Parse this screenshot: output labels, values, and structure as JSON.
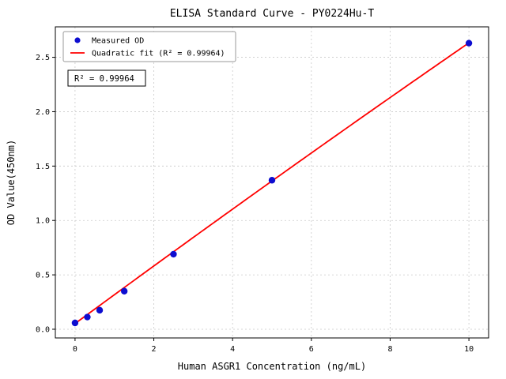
{
  "chart_data": {
    "type": "scatter",
    "title": "ELISA Standard Curve - PY0224Hu-T",
    "xlabel": "Human ASGR1 Concentration (ng/mL)",
    "ylabel": "OD Value(450nm)",
    "x": [
      0,
      0.3125,
      0.625,
      1.25,
      2.5,
      5,
      10
    ],
    "y": [
      0.058,
      0.112,
      0.175,
      0.35,
      0.69,
      1.37,
      2.63
    ],
    "series": [
      {
        "name": "Measured OD",
        "type": "scatter"
      },
      {
        "name": "Quadratic fit (R² = 0.99964)",
        "type": "line"
      }
    ],
    "fit": {
      "a": 0.052,
      "b": 0.2663,
      "c": -0.00082,
      "x_range": [
        0,
        10
      ]
    },
    "annotation": "R² = 0.99964",
    "r_squared": 0.99964,
    "xticks": [
      0,
      2,
      4,
      6,
      8,
      10
    ],
    "yticks": [
      0.0,
      0.5,
      1.0,
      1.5,
      2.0,
      2.5
    ],
    "xlim": [
      -0.5,
      10.5
    ],
    "ylim": [
      -0.08,
      2.78
    ],
    "grid": true,
    "legend_position": "upper left",
    "colors": {
      "points": "#0d0dd0",
      "fit_line": "#ff0000",
      "grid": "#c9c9c9",
      "frame": "#000000",
      "legend_border": "#999999",
      "annotation_border": "#000000",
      "background": "#ffffff"
    }
  }
}
